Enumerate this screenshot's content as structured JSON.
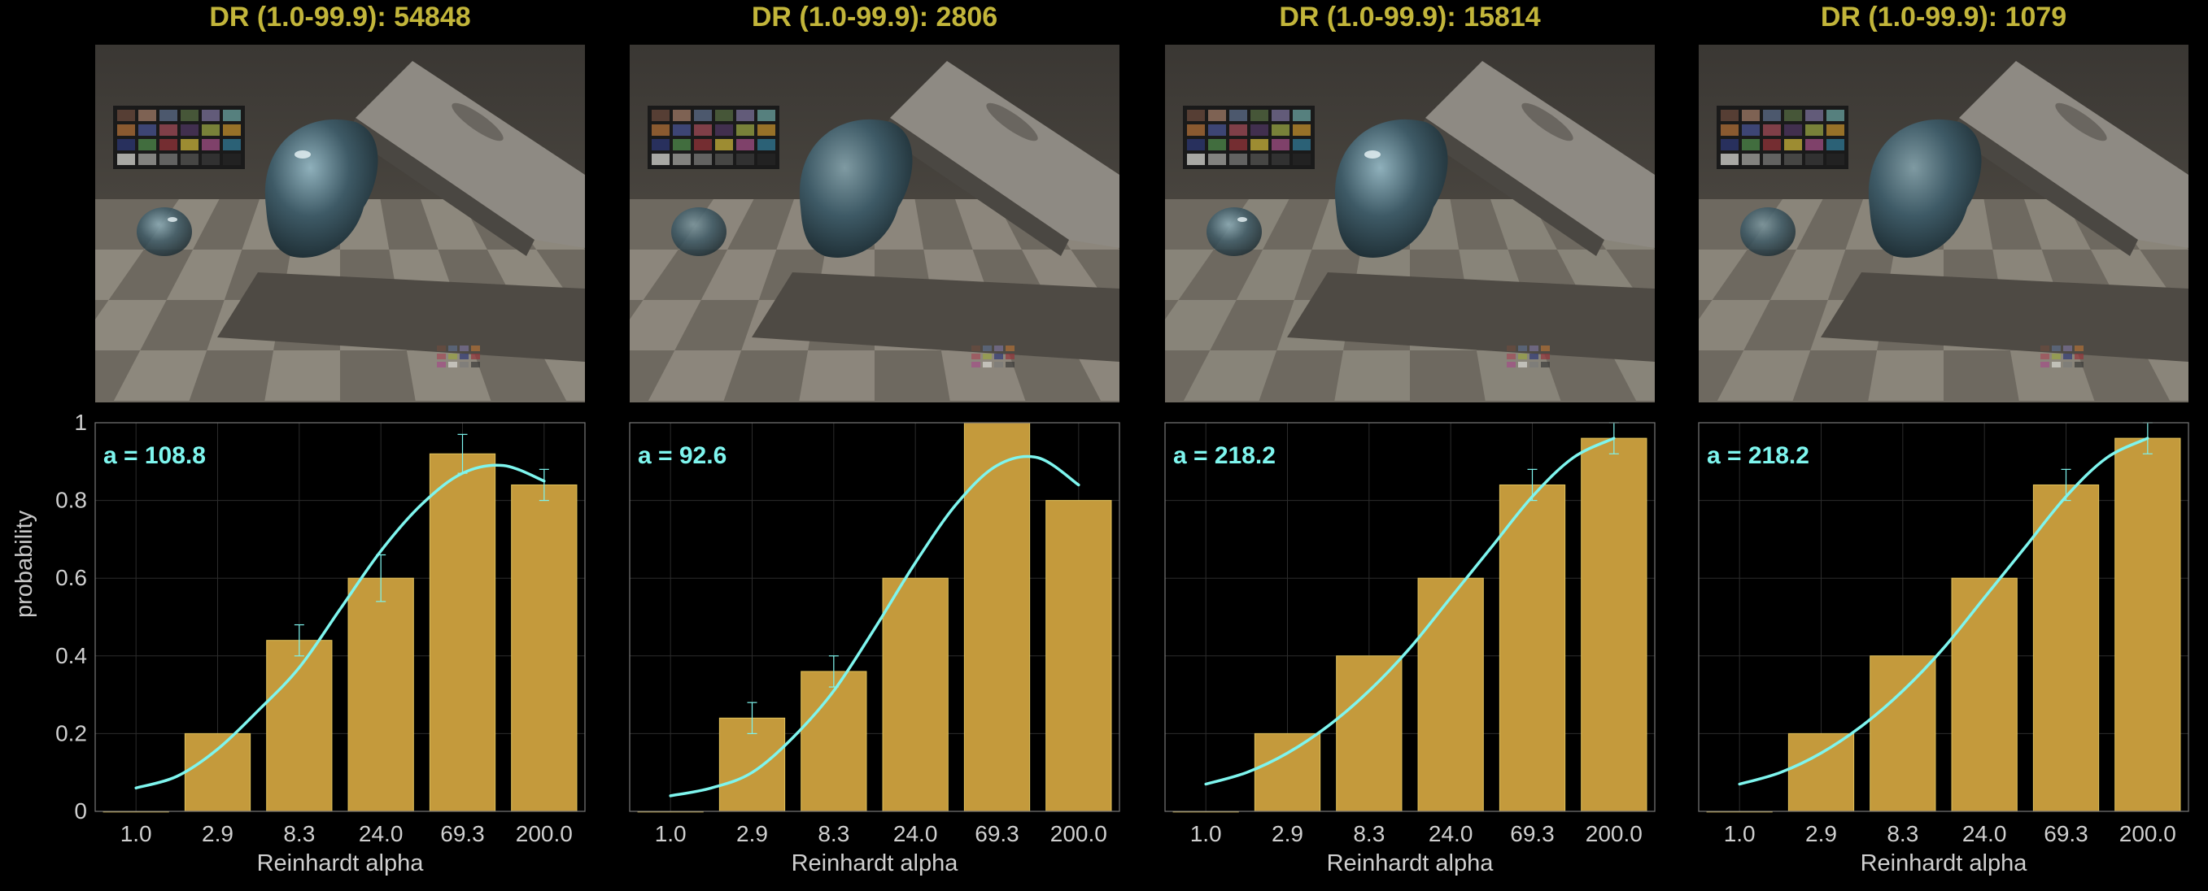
{
  "ylabel": "probability",
  "colors": {
    "title": "#c2b53a",
    "bar": "#c49a3c",
    "bar_edge": "#e0c25a",
    "curve": "#7ef5ee",
    "annotation": "#7ef5ee",
    "axis": "#cfcfcf",
    "grid": "#2c2c2c"
  },
  "panels": [
    {
      "title": "DR (1.0-99.9): 54848",
      "annotation": "a = 108.8"
    },
    {
      "title": "DR (1.0-99.9): 2806",
      "annotation": "a = 92.6"
    },
    {
      "title": "DR (1.0-99.9): 15814",
      "annotation": "a = 218.2"
    },
    {
      "title": "DR (1.0-99.9): 1079",
      "annotation": "a = 218.2"
    }
  ],
  "chart_data": [
    {
      "type": "bar",
      "title": "DR (1.0-99.9): 54848",
      "xlabel": "Reinhardt alpha",
      "ylabel": "probability",
      "categories": [
        "1.0",
        "2.9",
        "8.3",
        "24.0",
        "69.3",
        "200.0"
      ],
      "values": [
        0.0,
        0.2,
        0.44,
        0.6,
        0.92,
        0.84
      ],
      "errors": [
        0.0,
        0.0,
        0.04,
        0.06,
        0.05,
        0.04
      ],
      "fit_curve": [
        [
          0,
          0.06
        ],
        [
          0.5,
          0.09
        ],
        [
          1,
          0.16
        ],
        [
          1.5,
          0.26
        ],
        [
          2,
          0.37
        ],
        [
          2.5,
          0.52
        ],
        [
          3,
          0.67
        ],
        [
          3.5,
          0.79
        ],
        [
          4,
          0.87
        ],
        [
          4.5,
          0.89
        ],
        [
          5,
          0.85
        ]
      ],
      "annotation": "a = 108.8",
      "yticks": [
        "0",
        "0.2",
        "0.4",
        "0.6",
        "0.8",
        "1"
      ],
      "ylim": [
        0,
        1
      ],
      "grid": true
    },
    {
      "type": "bar",
      "title": "DR (1.0-99.9): 2806",
      "xlabel": "Reinhardt alpha",
      "ylabel": "",
      "categories": [
        "1.0",
        "2.9",
        "8.3",
        "24.0",
        "69.3",
        "200.0"
      ],
      "values": [
        0.0,
        0.24,
        0.36,
        0.6,
        1.0,
        0.8
      ],
      "errors": [
        0.0,
        0.04,
        0.04,
        0.0,
        0.0,
        0.0
      ],
      "fit_curve": [
        [
          0,
          0.04
        ],
        [
          0.5,
          0.06
        ],
        [
          1,
          0.1
        ],
        [
          1.5,
          0.19
        ],
        [
          2,
          0.31
        ],
        [
          2.5,
          0.47
        ],
        [
          3,
          0.64
        ],
        [
          3.5,
          0.79
        ],
        [
          4,
          0.89
        ],
        [
          4.5,
          0.91
        ],
        [
          5,
          0.84
        ]
      ],
      "annotation": "a = 92.6",
      "yticks": [],
      "ylim": [
        0,
        1
      ],
      "grid": true
    },
    {
      "type": "bar",
      "title": "DR (1.0-99.9): 15814",
      "xlabel": "Reinhardt alpha",
      "ylabel": "",
      "categories": [
        "1.0",
        "2.9",
        "8.3",
        "24.0",
        "69.3",
        "200.0"
      ],
      "values": [
        0.0,
        0.2,
        0.4,
        0.6,
        0.84,
        0.96
      ],
      "errors": [
        0.0,
        0.0,
        0.0,
        0.0,
        0.04,
        0.04
      ],
      "fit_curve": [
        [
          0,
          0.07
        ],
        [
          0.5,
          0.1
        ],
        [
          1,
          0.15
        ],
        [
          1.5,
          0.22
        ],
        [
          2,
          0.31
        ],
        [
          2.5,
          0.42
        ],
        [
          3,
          0.55
        ],
        [
          3.5,
          0.68
        ],
        [
          4,
          0.81
        ],
        [
          4.5,
          0.91
        ],
        [
          5,
          0.96
        ]
      ],
      "annotation": "a = 218.2",
      "yticks": [],
      "ylim": [
        0,
        1
      ],
      "grid": true
    },
    {
      "type": "bar",
      "title": "DR (1.0-99.9): 1079",
      "xlabel": "Reinhardt alpha",
      "ylabel": "",
      "categories": [
        "1.0",
        "2.9",
        "8.3",
        "24.0",
        "69.3",
        "200.0"
      ],
      "values": [
        0.0,
        0.2,
        0.4,
        0.6,
        0.84,
        0.96
      ],
      "errors": [
        0.0,
        0.0,
        0.0,
        0.0,
        0.04,
        0.04
      ],
      "fit_curve": [
        [
          0,
          0.07
        ],
        [
          0.5,
          0.1
        ],
        [
          1,
          0.15
        ],
        [
          1.5,
          0.22
        ],
        [
          2,
          0.31
        ],
        [
          2.5,
          0.42
        ],
        [
          3,
          0.55
        ],
        [
          3.5,
          0.68
        ],
        [
          4,
          0.81
        ],
        [
          4.5,
          0.91
        ],
        [
          5,
          0.96
        ]
      ],
      "annotation": "a = 218.2",
      "yticks": [],
      "ylim": [
        0,
        1
      ],
      "grid": true
    }
  ]
}
